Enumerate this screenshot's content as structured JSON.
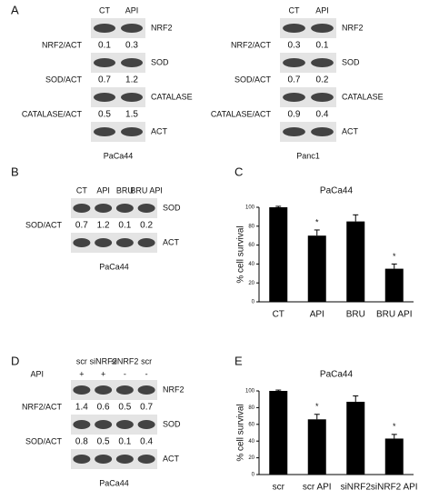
{
  "panel_labels": [
    "A",
    "B",
    "C",
    "D",
    "E"
  ],
  "blots": [
    {
      "lanes": [
        "CT",
        "API"
      ],
      "rows": [
        {
          "label": "NRF2"
        },
        {
          "label": "NRF2/ACT",
          "values": [
            0.1,
            0.3
          ]
        },
        {
          "label": "SOD"
        },
        {
          "label": "SOD/ACT",
          "values": [
            0.7,
            1.2
          ]
        },
        {
          "label": "CATALASE"
        },
        {
          "label": "CATALASE/ACT",
          "values": [
            0.5,
            1.5
          ]
        },
        {
          "label": "ACT"
        }
      ],
      "caption": "PaCa44"
    },
    {
      "lanes": [
        "CT",
        "API"
      ],
      "rows": [
        {
          "label": "NRF2"
        },
        {
          "label": "NRF2/ACT",
          "values": [
            0.3,
            0.1
          ]
        },
        {
          "label": "SOD"
        },
        {
          "label": "SOD/ACT",
          "values": [
            0.7,
            0.2
          ]
        },
        {
          "label": "CATALASE"
        },
        {
          "label": "CATALASE/ACT",
          "values": [
            0.9,
            0.4
          ]
        },
        {
          "label": "ACT"
        }
      ],
      "caption": "Panc1"
    },
    {
      "lanes": [
        "CT",
        "API",
        "BRU",
        "BRU API"
      ],
      "rows": [
        {
          "label": "SOD"
        },
        {
          "label": "SOD/ACT",
          "values": [
            0.7,
            1.2,
            0.1,
            0.2
          ]
        },
        {
          "label": "ACT"
        }
      ],
      "caption": "PaCa44"
    },
    {
      "lanes": [
        "scr",
        "siNRF2",
        "siNRF2",
        "scr"
      ],
      "treatment": {
        "label": "API",
        "marks": [
          "+",
          "+",
          "-",
          "-"
        ]
      },
      "rows": [
        {
          "label": "NRF2"
        },
        {
          "label": "NRF2/ACT",
          "values": [
            1.4,
            0.6,
            0.5,
            0.7
          ]
        },
        {
          "label": "SOD"
        },
        {
          "label": "SOD/ACT",
          "values": [
            0.8,
            0.5,
            0.1,
            0.4
          ]
        },
        {
          "label": "ACT"
        }
      ],
      "caption": "PaCa44"
    }
  ],
  "chart_data": [
    {
      "type": "bar",
      "title": "PaCa44",
      "y_label": "% cell survival",
      "categories": [
        "CT",
        "API",
        "BRU",
        "BRU API"
      ],
      "values": [
        100,
        70,
        85,
        35
      ],
      "errors": [
        1,
        6,
        7,
        5
      ],
      "asterisks": [
        null,
        "*",
        null,
        "*"
      ],
      "ylim": [
        0,
        100
      ],
      "yticks": [
        0,
        20,
        40,
        60,
        80,
        100
      ],
      "color": "#000000"
    },
    {
      "type": "bar",
      "title": "PaCa44",
      "y_label": "% cell survival",
      "categories": [
        "scr",
        "scr API",
        "siNRF2",
        "siNRF2 API"
      ],
      "values": [
        100,
        66,
        87,
        43
      ],
      "errors": [
        1,
        6,
        7,
        5
      ],
      "asterisks": [
        null,
        "*",
        null,
        "*"
      ],
      "ylim": [
        0,
        100
      ],
      "yticks": [
        0,
        20,
        40,
        60,
        80,
        100
      ],
      "color": "#000000"
    }
  ]
}
